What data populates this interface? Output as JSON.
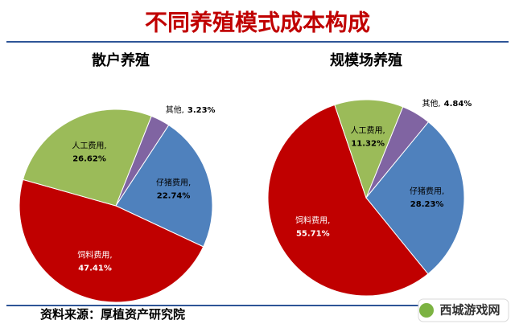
{
  "title": "不同养殖模式成本构成",
  "source": "资料来源：厚植资产研究院",
  "watermark": "西城游戏网",
  "chart_data": [
    {
      "type": "pie",
      "title": "散户养殖",
      "categories": [
        "其他,",
        "仔猪费用,",
        "饲料费用,",
        "人工费用,"
      ],
      "values": [
        3.23,
        22.74,
        47.41,
        26.62
      ],
      "value_labels": [
        "3.23%",
        "22.74%",
        "47.41%",
        "26.62%"
      ],
      "colors": [
        "#8064a2",
        "#4f81bd",
        "#c00000",
        "#9bbb59"
      ]
    },
    {
      "type": "pie",
      "title": "规模场养殖",
      "categories": [
        "其他,",
        "仔猪费用,",
        "饲料费用,",
        "人工费用,"
      ],
      "values": [
        4.84,
        28.23,
        55.71,
        11.32
      ],
      "value_labels": [
        "4.84%",
        "28.23%",
        "55.71%",
        "11.32%"
      ],
      "colors": [
        "#8064a2",
        "#4f81bd",
        "#c00000",
        "#9bbb59"
      ]
    }
  ]
}
